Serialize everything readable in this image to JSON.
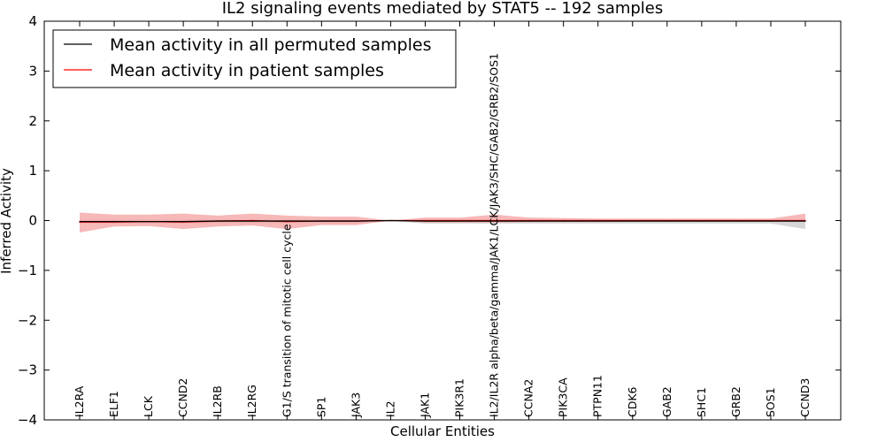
{
  "chart_data": {
    "type": "line",
    "title": "IL2 signaling events mediated by STAT5 -- 192 samples",
    "xlabel": "Cellular Entities",
    "ylabel": "Inferred Activity",
    "ylim": [
      -4,
      4
    ],
    "yticks": [
      4,
      3,
      2,
      1,
      0,
      -1,
      -2,
      -3,
      -4
    ],
    "ytick_labels": [
      "4",
      "3",
      "2",
      "1",
      "0",
      "−1",
      "−2",
      "−3",
      "−4"
    ],
    "categories": [
      "IL2RA",
      "ELF1",
      "LCK",
      "CCND2",
      "IL2RB",
      "IL2RG",
      "G1/S transition of mitotic cell cycle",
      "SP1",
      "JAK3",
      "IL2",
      "JAK1",
      "PIK3R1",
      "IL2/IL2R alpha/beta/gamma/JAK1/LCK/JAK3/SHC/GAB2/GRB2/SOS1",
      "CCNA2",
      "PIK3CA",
      "PTPN11",
      "CDK6",
      "GAB2",
      "SHC1",
      "GRB2",
      "SOS1",
      "CCND3"
    ],
    "legend": {
      "placement": "top-left",
      "entries": [
        "Mean activity in all permuted samples",
        "Mean activity in patient samples"
      ]
    },
    "series": [
      {
        "name": "Mean activity in all permuted samples",
        "color": "#000000",
        "values": [
          -0.02,
          -0.02,
          -0.02,
          -0.02,
          -0.01,
          -0.01,
          -0.01,
          -0.01,
          -0.01,
          0.0,
          -0.01,
          -0.01,
          -0.01,
          -0.01,
          -0.01,
          -0.01,
          -0.01,
          -0.01,
          -0.01,
          -0.01,
          -0.01,
          -0.01
        ],
        "band_upper": [
          0.02,
          0.02,
          0.02,
          0.02,
          0.02,
          0.02,
          0.02,
          0.02,
          0.02,
          0.0,
          0.02,
          0.02,
          0.02,
          0.02,
          0.02,
          0.02,
          0.02,
          0.02,
          0.02,
          0.02,
          0.02,
          0.02
        ],
        "band_lower": [
          -0.06,
          -0.06,
          -0.06,
          -0.06,
          -0.05,
          -0.05,
          -0.05,
          -0.05,
          -0.05,
          -0.01,
          -0.06,
          -0.06,
          -0.06,
          -0.06,
          -0.06,
          -0.06,
          -0.06,
          -0.06,
          -0.06,
          -0.06,
          -0.06,
          -0.17
        ],
        "band_color": "#c8c8c8"
      },
      {
        "name": "Mean activity in patient samples",
        "color": "#ff0000",
        "values": [
          -0.03,
          -0.03,
          -0.02,
          -0.03,
          -0.01,
          0.0,
          -0.02,
          -0.01,
          -0.01,
          0.0,
          0.0,
          0.0,
          0.0,
          0.0,
          0.0,
          0.0,
          0.0,
          0.0,
          0.0,
          0.0,
          0.0,
          0.0
        ],
        "band_upper": [
          0.16,
          0.12,
          0.12,
          0.14,
          0.1,
          0.14,
          0.1,
          0.08,
          0.08,
          0.0,
          0.06,
          0.06,
          0.12,
          0.06,
          0.05,
          0.04,
          0.04,
          0.04,
          0.04,
          0.04,
          0.04,
          0.14
        ],
        "band_lower": [
          -0.24,
          -0.12,
          -0.11,
          -0.17,
          -0.12,
          -0.1,
          -0.17,
          -0.09,
          -0.09,
          0.0,
          -0.04,
          -0.04,
          -0.04,
          -0.03,
          -0.03,
          -0.03,
          -0.02,
          -0.02,
          -0.02,
          -0.02,
          -0.02,
          -0.02
        ],
        "band_color": "#f4a0a0"
      }
    ],
    "grid": false
  }
}
